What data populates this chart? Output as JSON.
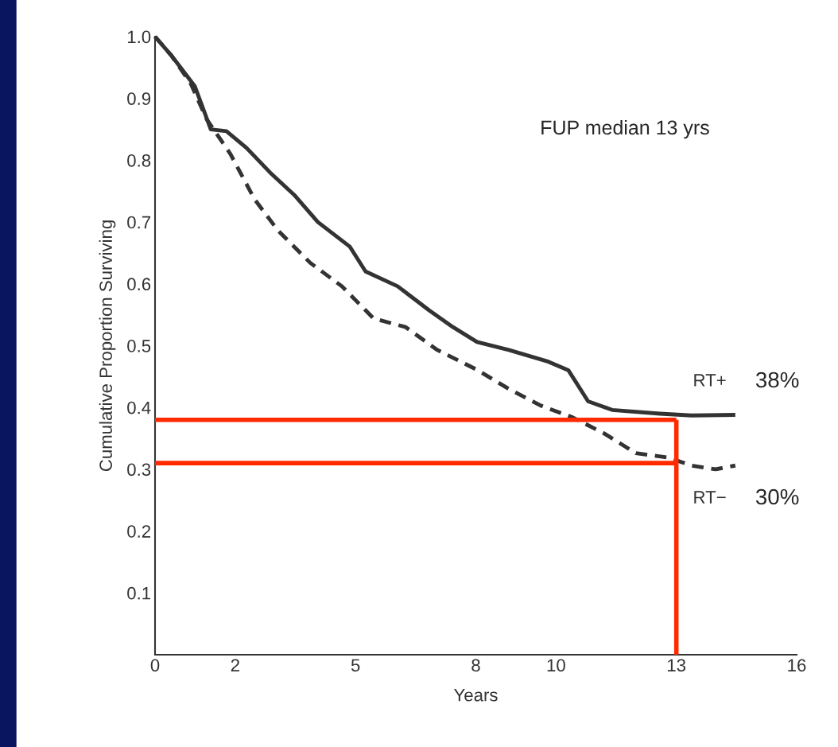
{
  "chart_data": {
    "type": "line",
    "xlabel": "Years",
    "ylabel": "Cumulative Proportion Surviving",
    "xlim": [
      0,
      16
    ],
    "ylim": [
      0,
      1.0
    ],
    "xticks": [
      0,
      2,
      5,
      8,
      10,
      13,
      16
    ],
    "yticks": [
      {
        "value": 0.1,
        "label": "0.1"
      },
      {
        "value": 0.2,
        "label": "0.2"
      },
      {
        "value": 0.3,
        "label": "0.3"
      },
      {
        "value": 0.4,
        "label": "0.4"
      },
      {
        "value": 0.5,
        "label": "0.5"
      },
      {
        "value": 0.6,
        "label": "0.6"
      },
      {
        "value": 0.7,
        "label": "0.7"
      },
      {
        "value": 0.8,
        "label": "0.8"
      },
      {
        "value": 0.9,
        "label": "0.9"
      },
      {
        "value": 1.0,
        "label": "1.0"
      }
    ],
    "grid": false,
    "legend": false,
    "series": [
      {
        "name": "RT+",
        "color": "#333333",
        "line_style": "solid",
        "x": [
          0,
          0.4,
          0.99,
          1.39,
          1.78,
          2.28,
          2.87,
          3.47,
          4.06,
          4.86,
          5.25,
          6.05,
          6.84,
          7.43,
          8.03,
          8.82,
          9.81,
          10.31,
          10.8,
          11.4,
          12.59,
          13.38,
          14.47
        ],
        "values": [
          1.0,
          0.97,
          0.92,
          0.85,
          0.847,
          0.82,
          0.78,
          0.744,
          0.7,
          0.66,
          0.62,
          0.596,
          0.557,
          0.53,
          0.506,
          0.493,
          0.474,
          0.46,
          0.41,
          0.396,
          0.39,
          0.387,
          0.388
        ]
      },
      {
        "name": "RT−",
        "color": "#333333",
        "line_style": "dashed",
        "x": [
          0,
          0.4,
          0.89,
          1.29,
          1.88,
          2.48,
          3.07,
          3.87,
          4.66,
          5.45,
          6.25,
          7.04,
          8.03,
          8.82,
          9.62,
          10.41,
          11.2,
          11.99,
          12.79,
          13.38,
          13.98,
          14.47
        ],
        "values": [
          1.0,
          0.97,
          0.924,
          0.866,
          0.81,
          0.737,
          0.686,
          0.634,
          0.596,
          0.544,
          0.53,
          0.493,
          0.461,
          0.43,
          0.403,
          0.384,
          0.358,
          0.326,
          0.319,
          0.306,
          0.3,
          0.306
        ]
      },
      {
        "color": "#ff2a00",
        "line_style": "solid",
        "x": [
          0,
          13
        ],
        "values": [
          0.38,
          0.38
        ]
      },
      {
        "color": "#ff2a00",
        "line_style": "solid",
        "x": [
          0,
          13
        ],
        "values": [
          0.31,
          0.31
        ]
      },
      {
        "color": "#ff2a00",
        "line_style": "solid",
        "x": [
          13,
          13
        ],
        "values": [
          0,
          0.38
        ]
      }
    ],
    "annotations": [
      "FUP median 13 yrs",
      {
        "text": "38%",
        "x": 14.47,
        "y": 0.388
      },
      {
        "text": "30%",
        "x": 14.47,
        "y": 0.306
      }
    ]
  }
}
